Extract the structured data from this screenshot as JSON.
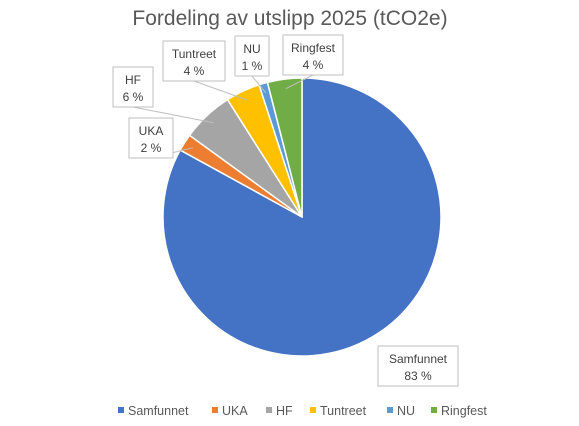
{
  "chart_data": {
    "type": "pie",
    "title": "Fordeling av utslipp 2025 (tCO2e)",
    "categories": [
      "Samfunnet",
      "UKA",
      "HF",
      "Tuntreet",
      "NU",
      "Ringfest"
    ],
    "values": [
      83,
      2,
      6,
      4,
      1,
      4
    ],
    "data_labels": [
      "83 %",
      "2 %",
      "6 %",
      "4 %",
      "1 %",
      "4 %"
    ],
    "colors": [
      "#4472C4",
      "#ED7D31",
      "#A5A5A5",
      "#FFC000",
      "#5B9BD5",
      "#70AD47"
    ],
    "legend_position": "bottom"
  }
}
